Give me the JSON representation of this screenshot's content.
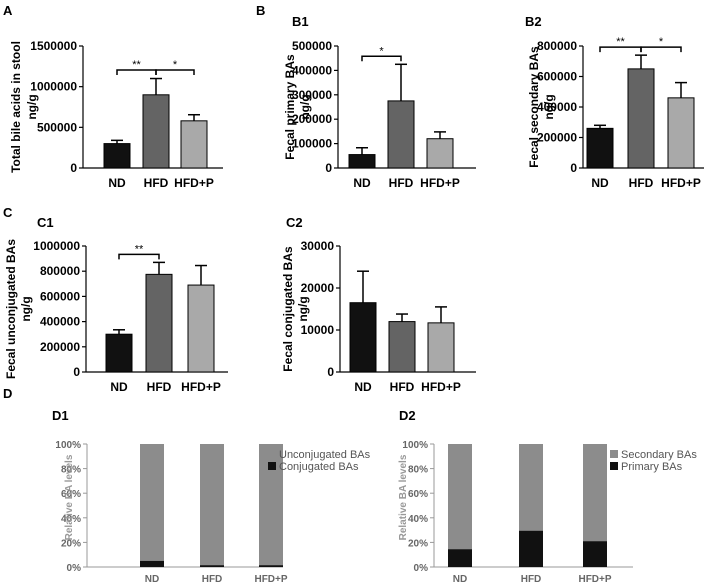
{
  "panel_letters": [
    "A",
    "B",
    "C",
    "D"
  ],
  "colors": {
    "ND": "#111111",
    "HFD": "#646464",
    "HFD+P": "#a9a9a9",
    "stack_top": "#8c8c8c",
    "stack_bottom": "#111111"
  },
  "chart_data": [
    {
      "id": "A",
      "sublabel": "",
      "type": "bar",
      "ylabel_lines": [
        "Total bile acids in stool",
        "ng/g"
      ],
      "categories": [
        "ND",
        "HFD",
        "HFD+P"
      ],
      "values": [
        300000,
        900000,
        580000
      ],
      "errors": [
        40000,
        200000,
        75000
      ],
      "ylim": [
        0,
        1500000
      ],
      "yticks": [
        "0",
        "500000",
        "1000000",
        "1500000"
      ],
      "yticks_values": [
        0,
        500000,
        1000000,
        1500000
      ],
      "significance": [
        {
          "from": 0,
          "to": 1,
          "label": "**"
        },
        {
          "from": 1,
          "to": 2,
          "label": "*"
        }
      ]
    },
    {
      "id": "B1",
      "sublabel": "B1",
      "type": "bar",
      "ylabel_lines": [
        "Fecal primary BAs",
        "ng/g"
      ],
      "categories": [
        "ND",
        "HFD",
        "HFD+P"
      ],
      "values": [
        55000,
        275000,
        120000
      ],
      "errors": [
        28000,
        150000,
        28000
      ],
      "ylim": [
        0,
        500000
      ],
      "yticks": [
        "0",
        "100000",
        "200000",
        "300000",
        "400000",
        "500000"
      ],
      "yticks_values": [
        0,
        100000,
        200000,
        300000,
        400000,
        500000
      ],
      "significance": [
        {
          "from": 0,
          "to": 1,
          "label": "*"
        }
      ]
    },
    {
      "id": "B2",
      "sublabel": "B2",
      "type": "bar",
      "ylabel_lines": [
        "Fecal secondary BAs",
        "ng/g"
      ],
      "categories": [
        "ND",
        "HFD",
        "HFD+P"
      ],
      "values": [
        260000,
        650000,
        460000
      ],
      "errors": [
        20000,
        90000,
        100000
      ],
      "ylim": [
        0,
        800000
      ],
      "yticks": [
        "0",
        "200000",
        "400000",
        "600000",
        "800000"
      ],
      "yticks_values": [
        0,
        200000,
        400000,
        600000,
        800000
      ],
      "significance": [
        {
          "from": 0,
          "to": 1,
          "label": "**"
        },
        {
          "from": 1,
          "to": 2,
          "label": "*"
        }
      ]
    },
    {
      "id": "C1",
      "sublabel": "C1",
      "type": "bar",
      "ylabel_lines": [
        "Fecal unconjugated BAs",
        "ng/g"
      ],
      "categories": [
        "ND",
        "HFD",
        "HFD+P"
      ],
      "values": [
        300000,
        775000,
        690000
      ],
      "errors": [
        35000,
        95000,
        155000
      ],
      "ylim": [
        0,
        1000000
      ],
      "yticks": [
        "0",
        "200000",
        "400000",
        "600000",
        "800000",
        "1000000"
      ],
      "yticks_values": [
        0,
        200000,
        400000,
        600000,
        800000,
        1000000
      ],
      "significance": [
        {
          "from": 0,
          "to": 1,
          "label": "**"
        }
      ]
    },
    {
      "id": "C2",
      "sublabel": "C2",
      "type": "bar",
      "ylabel_lines": [
        "Fecal conjugated BAs",
        "ng/g"
      ],
      "categories": [
        "ND",
        "HFD",
        "HFD+P"
      ],
      "values": [
        16500,
        12000,
        11700
      ],
      "errors": [
        7500,
        1800,
        3800
      ],
      "ylim": [
        0,
        30000
      ],
      "yticks": [
        "0",
        "10000",
        "20000",
        "30000"
      ],
      "yticks_values": [
        0,
        10000,
        20000,
        30000
      ],
      "significance": []
    },
    {
      "id": "D1",
      "sublabel": "D1",
      "type": "stacked-bar",
      "ylabel": "Relative BA levels",
      "categories": [
        "ND",
        "HFD",
        "HFD+P"
      ],
      "series": [
        {
          "name": "Conjugated BAs",
          "values": [
            5,
            1.5,
            1.5
          ]
        },
        {
          "name": "Unconjugated BAs",
          "values": [
            95,
            98.5,
            98.5
          ]
        }
      ],
      "legend": [
        "Unconjugated BAs",
        "Conjugated BAs"
      ],
      "ylim": [
        0,
        100
      ],
      "yticks": [
        "0%",
        "20%",
        "40%",
        "60%",
        "80%",
        "100%"
      ],
      "yticks_values": [
        0,
        20,
        40,
        60,
        80,
        100
      ]
    },
    {
      "id": "D2",
      "sublabel": "D2",
      "type": "stacked-bar",
      "ylabel": "Relative BA levels",
      "categories": [
        "ND",
        "HFD",
        "HFD+P"
      ],
      "series": [
        {
          "name": "Primary BAs",
          "values": [
            14.5,
            29.5,
            21
          ]
        },
        {
          "name": "Secondary BAs",
          "values": [
            85.5,
            70.5,
            79
          ]
        }
      ],
      "legend": [
        "Secondary BAs",
        "Primary BAs"
      ],
      "ylim": [
        0,
        100
      ],
      "yticks": [
        "0%",
        "20%",
        "40%",
        "60%",
        "80%",
        "100%"
      ],
      "yticks_values": [
        0,
        20,
        40,
        60,
        80,
        100
      ]
    }
  ]
}
